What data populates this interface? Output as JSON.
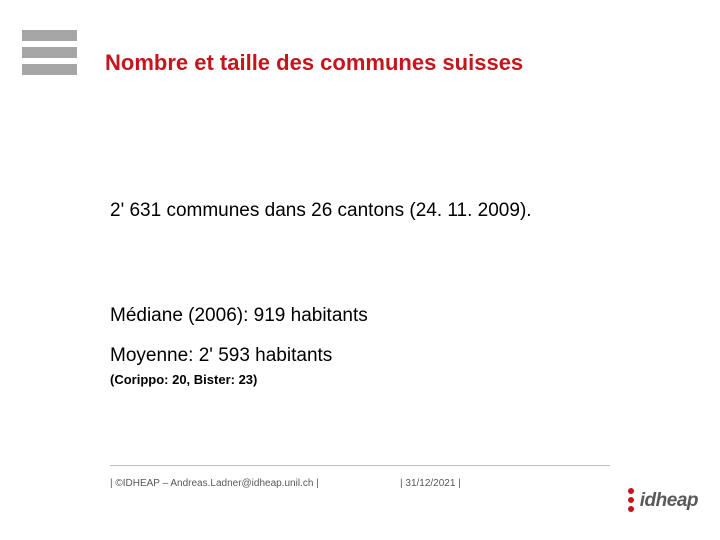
{
  "colors": {
    "title": "#c4161c",
    "body": "#000000",
    "footer": "#595959",
    "bar": "#a6a6a6",
    "accent": "#c4161c"
  },
  "title": "Nombre et taille des communes suisses",
  "line1": "2' 631 communes dans 26 cantons (24. 11. 2009).",
  "line2": "Médiane (2006): 919 habitants",
  "line3": "Moyenne: 2' 593 habitants",
  "small_note": "(Corippo: 20, Bister: 23)",
  "footer_left": "| ©IDHEAP – Andreas.Ladner@idheap.unil.ch |",
  "footer_right": "| 31/12/2021 |",
  "brand": "idheap"
}
